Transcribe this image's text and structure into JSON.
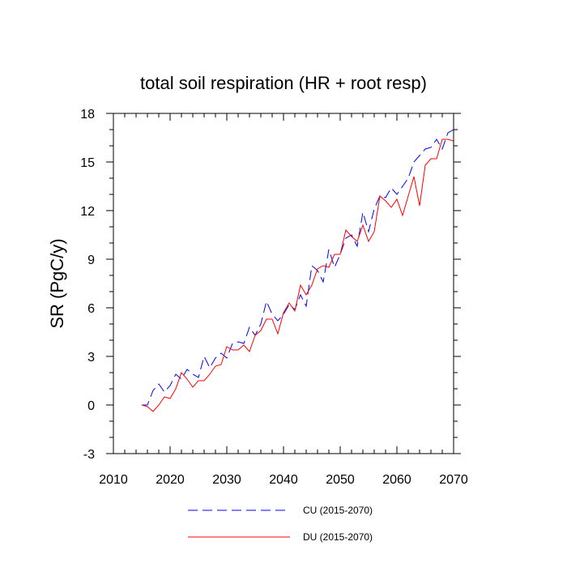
{
  "chart_data": {
    "type": "line",
    "title": "total soil respiration (HR + root resp)",
    "xlabel": "",
    "ylabel": "SR  (PgC/y)",
    "xlim": [
      2010,
      2070
    ],
    "ylim": [
      -3,
      18
    ],
    "xticks": [
      "2010",
      "2020",
      "2030",
      "2040",
      "2050",
      "2060",
      "2070"
    ],
    "yticks": [
      "-3",
      "0",
      "3",
      "6",
      "9",
      "12",
      "15",
      "18"
    ],
    "x": [
      2015,
      2016,
      2017,
      2018,
      2019,
      2020,
      2021,
      2022,
      2023,
      2024,
      2025,
      2026,
      2027,
      2028,
      2029,
      2030,
      2031,
      2032,
      2033,
      2034,
      2035,
      2036,
      2037,
      2038,
      2039,
      2040,
      2041,
      2042,
      2043,
      2044,
      2045,
      2046,
      2047,
      2048,
      2049,
      2050,
      2051,
      2052,
      2053,
      2054,
      2055,
      2056,
      2057,
      2058,
      2059,
      2060,
      2061,
      2062,
      2063,
      2064,
      2065,
      2066,
      2067,
      2068,
      2069,
      2070
    ],
    "series": [
      {
        "name": "CU (2015-2070)",
        "color": "#0000ff",
        "dash": "dashed",
        "values": [
          0.0,
          0.0,
          0.9,
          1.3,
          0.8,
          1.2,
          1.9,
          1.6,
          2.2,
          1.9,
          1.7,
          3.0,
          2.3,
          2.9,
          3.2,
          2.9,
          3.8,
          3.9,
          3.8,
          4.8,
          4.3,
          5.0,
          6.4,
          5.6,
          5.2,
          5.6,
          6.2,
          5.9,
          6.8,
          6.1,
          8.6,
          8.3,
          7.6,
          9.6,
          8.5,
          9.3,
          10.3,
          10.5,
          9.8,
          11.9,
          10.7,
          12.1,
          12.9,
          12.8,
          13.4,
          13.0,
          13.5,
          14.0,
          15.0,
          15.4,
          15.8,
          15.9,
          16.4,
          15.8,
          16.8,
          17.0
        ]
      },
      {
        "name": "DU (2015-2070)",
        "color": "#ff0000",
        "dash": "solid",
        "values": [
          0.0,
          -0.1,
          -0.4,
          0.0,
          0.5,
          0.4,
          1.0,
          2.0,
          1.6,
          1.1,
          1.5,
          1.5,
          1.9,
          2.4,
          2.5,
          3.6,
          3.4,
          3.4,
          3.7,
          3.3,
          4.3,
          4.6,
          5.3,
          5.3,
          4.4,
          5.7,
          6.3,
          5.8,
          7.4,
          6.8,
          7.4,
          8.4,
          8.6,
          8.5,
          9.3,
          9.3,
          10.8,
          10.4,
          10.1,
          11.1,
          10.1,
          10.7,
          12.9,
          12.6,
          12.2,
          12.7,
          11.7,
          12.9,
          14.1,
          12.3,
          14.8,
          15.2,
          15.2,
          16.4,
          16.4,
          16.3
        ]
      }
    ],
    "legend": "bottom"
  }
}
